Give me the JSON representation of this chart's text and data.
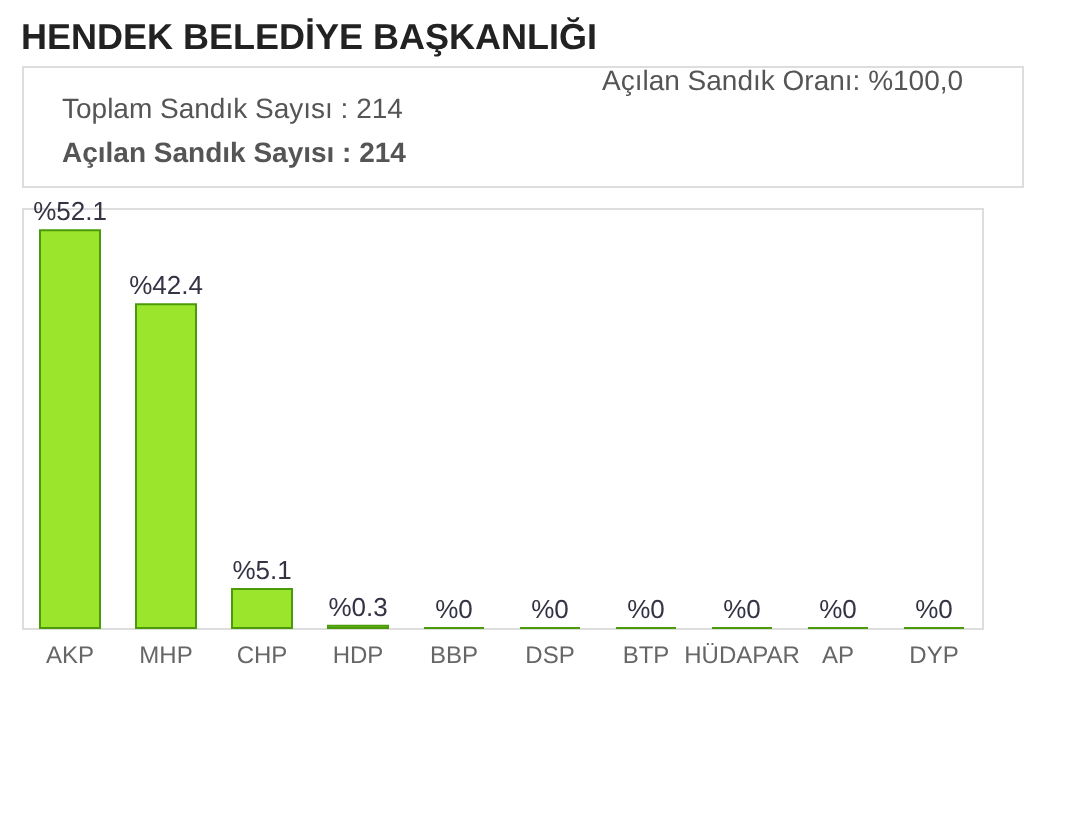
{
  "chart_data": {
    "type": "bar",
    "title": "HENDEK BELEDİYE BAŞKANLIĞI",
    "categories": [
      "AKP",
      "MHP",
      "CHP",
      "HDP",
      "BBP",
      "DSP",
      "BTP",
      "HÜDAPAR",
      "AP",
      "DYP"
    ],
    "values": [
      52.1,
      42.4,
      5.1,
      0.3,
      0,
      0,
      0,
      0,
      0,
      0
    ],
    "value_labels": [
      "%52.1",
      "%42.4",
      "%5.1",
      "%0.3",
      "%0",
      "%0",
      "%0",
      "%0",
      "%0",
      "%0"
    ],
    "color": "#9be52c",
    "annotations": [
      "Toplam Sandık Sayısı : 214",
      "Açılan Sandık Sayısı   : 214",
      "Açılan Sandık Oranı:  %100,0"
    ]
  }
}
